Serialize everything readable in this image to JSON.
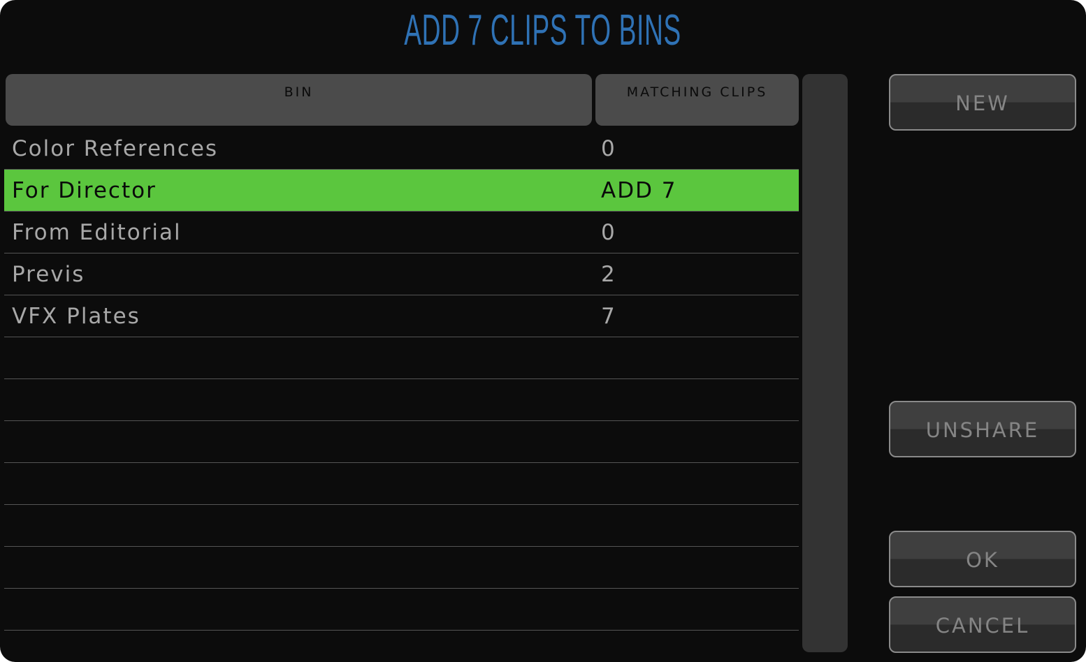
{
  "title": "ADD 7 CLIPS TO BINS",
  "columns": {
    "bin": "BIN",
    "matching": "MATCHING CLIPS"
  },
  "rows": [
    {
      "name": "Color References",
      "count": "0",
      "selected": false
    },
    {
      "name": "For Director",
      "count": "ADD 7",
      "selected": true
    },
    {
      "name": "From Editorial",
      "count": "0",
      "selected": false
    },
    {
      "name": "Previs",
      "count": "2",
      "selected": false
    },
    {
      "name": "VFX Plates",
      "count": "7",
      "selected": false
    }
  ],
  "empty_rows": 7,
  "buttons": {
    "new": "NEW",
    "unshare": "UNSHARE",
    "ok": "OK",
    "cancel": "CANCEL"
  },
  "colors": {
    "title": "#2f72b5",
    "selected_row": "#5bc63e"
  }
}
